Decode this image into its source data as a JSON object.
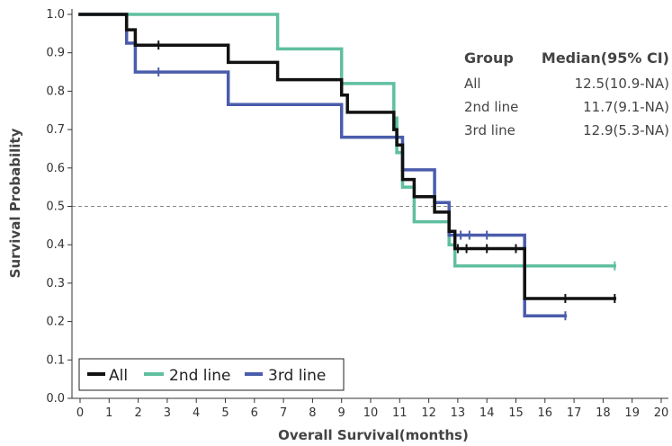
{
  "chart_data": {
    "type": "line",
    "subtype": "kaplan-meier-step",
    "xlabel": "Overall Survival(months)",
    "ylabel": "Survival Probability",
    "xlim": [
      0,
      20
    ],
    "ylim": [
      0,
      1
    ],
    "x_ticks": [
      "0",
      "1",
      "2",
      "3",
      "4",
      "5",
      "6",
      "7",
      "8",
      "9",
      "10",
      "11",
      "12",
      "13",
      "14",
      "15",
      "16",
      "17",
      "18",
      "19",
      "20"
    ],
    "y_ticks": [
      "0.0",
      "0.1",
      "0.2",
      "0.3",
      "0.4",
      "0.5",
      "0.6",
      "0.7",
      "0.8",
      "0.9",
      "1.0"
    ],
    "reference_line_y": 0.5,
    "legend_position": "bottom-left",
    "series": [
      {
        "name": "All",
        "color": "#111111",
        "steps": [
          [
            0,
            1.0
          ],
          [
            1.6,
            0.96
          ],
          [
            1.9,
            0.92
          ],
          [
            5.1,
            0.875
          ],
          [
            6.8,
            0.83
          ],
          [
            9.0,
            0.79
          ],
          [
            9.2,
            0.745
          ],
          [
            10.8,
            0.7
          ],
          [
            10.9,
            0.66
          ],
          [
            11.1,
            0.57
          ],
          [
            11.5,
            0.525
          ],
          [
            12.2,
            0.485
          ],
          [
            12.7,
            0.435
          ],
          [
            12.9,
            0.39
          ],
          [
            15.3,
            0.26
          ],
          [
            18.4,
            0.26
          ]
        ],
        "censor": [
          [
            2.7,
            0.92
          ],
          [
            13.0,
            0.39
          ],
          [
            13.3,
            0.39
          ],
          [
            14.0,
            0.39
          ],
          [
            15.0,
            0.39
          ],
          [
            16.7,
            0.26
          ],
          [
            18.4,
            0.26
          ]
        ]
      },
      {
        "name": "2nd line",
        "color": "#5fbfa0",
        "steps": [
          [
            0,
            1.0
          ],
          [
            6.8,
            0.91
          ],
          [
            9.0,
            0.82
          ],
          [
            10.8,
            0.73
          ],
          [
            10.9,
            0.64
          ],
          [
            11.1,
            0.55
          ],
          [
            11.5,
            0.46
          ],
          [
            12.7,
            0.4
          ],
          [
            12.9,
            0.345
          ],
          [
            18.4,
            0.345
          ]
        ],
        "censor": [
          [
            18.4,
            0.345
          ]
        ]
      },
      {
        "name": "3rd line",
        "color": "#4a5cab",
        "steps": [
          [
            0,
            1.0
          ],
          [
            1.6,
            0.925
          ],
          [
            1.9,
            0.85
          ],
          [
            5.1,
            0.765
          ],
          [
            9.0,
            0.68
          ],
          [
            11.1,
            0.595
          ],
          [
            12.2,
            0.51
          ],
          [
            12.7,
            0.425
          ],
          [
            15.3,
            0.215
          ],
          [
            16.7,
            0.215
          ]
        ],
        "censor": [
          [
            2.7,
            0.85
          ],
          [
            13.1,
            0.425
          ],
          [
            13.4,
            0.425
          ],
          [
            14.0,
            0.425
          ],
          [
            16.7,
            0.215
          ]
        ]
      }
    ],
    "table": {
      "headers": [
        "Group",
        "Median(95% CI)"
      ],
      "rows": [
        [
          "All",
          "12.5(10.9-NA)"
        ],
        [
          "2nd line",
          "11.7(9.1-NA)"
        ],
        [
          "3rd line",
          "12.9(5.3-NA)"
        ]
      ]
    }
  }
}
